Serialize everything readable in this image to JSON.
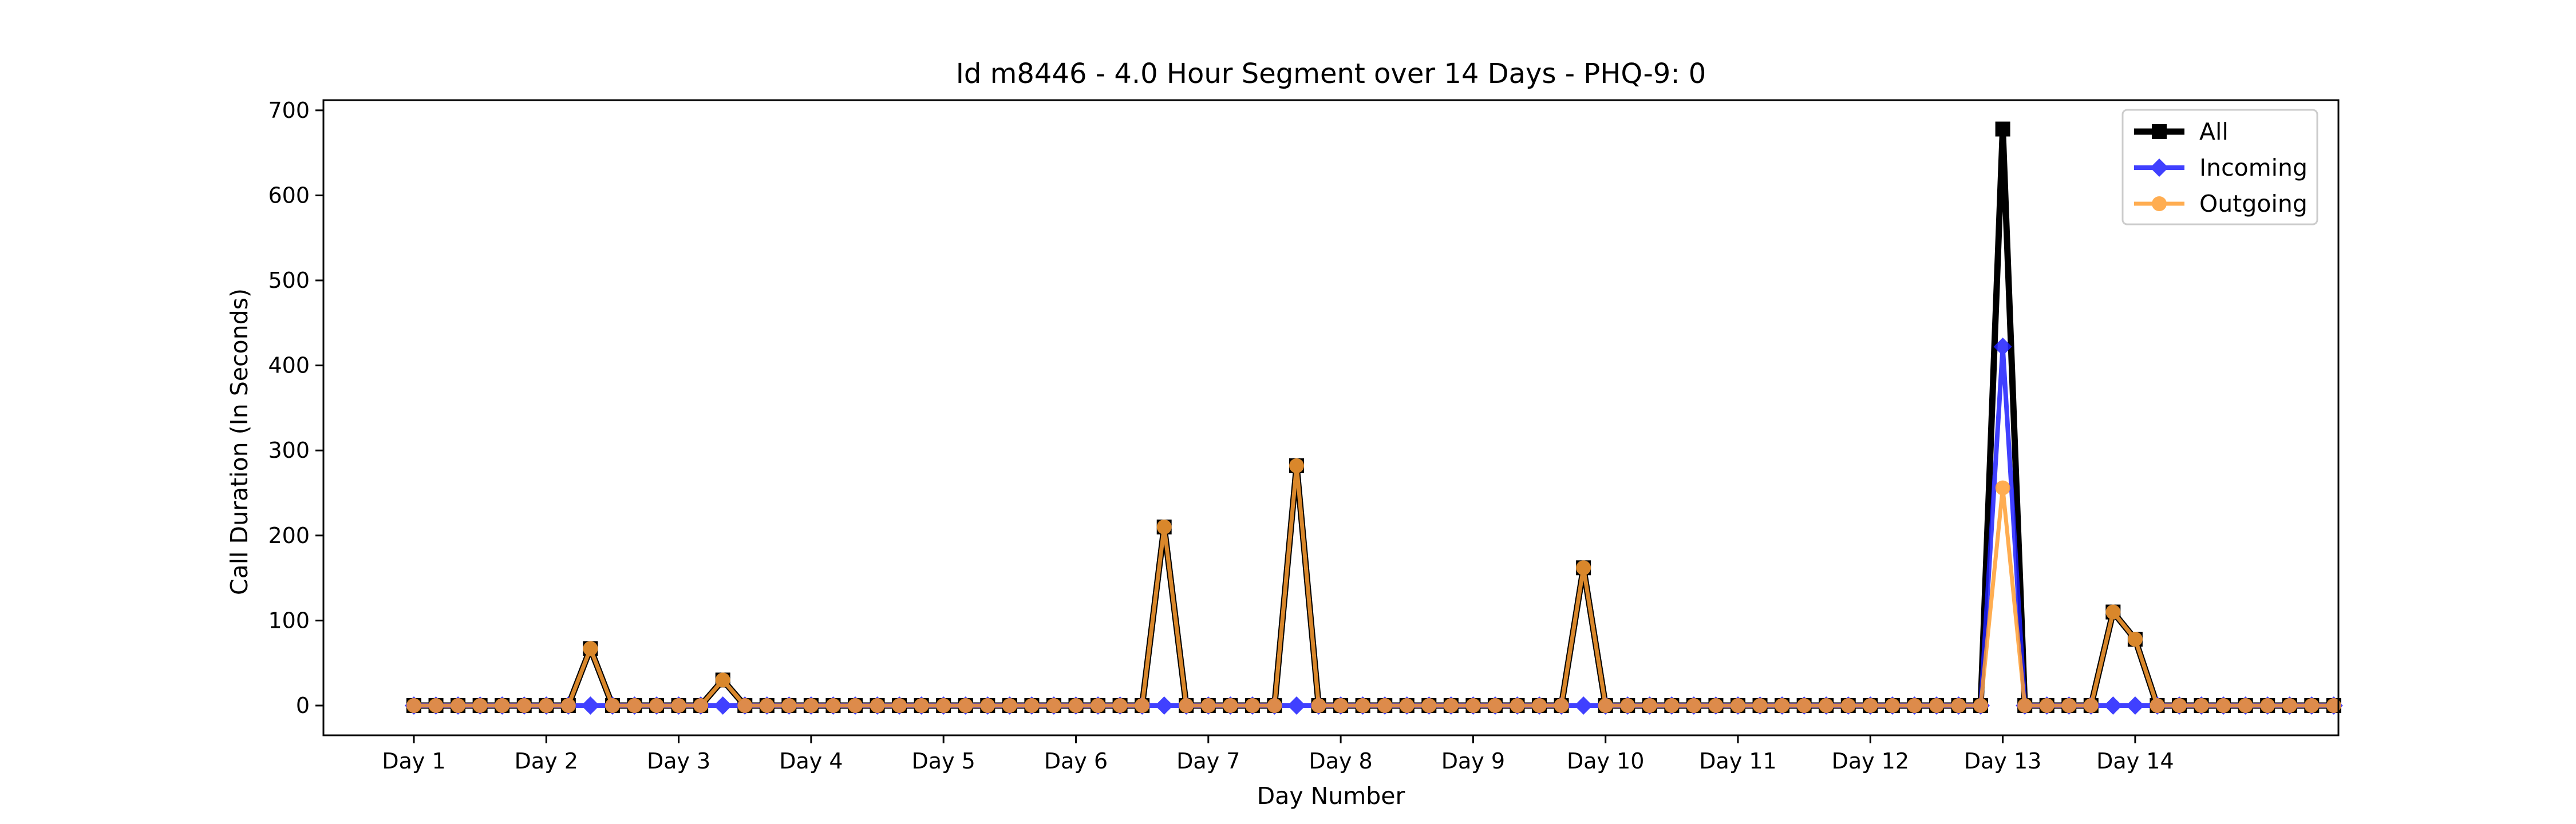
{
  "chart_data": {
    "type": "line",
    "title": "Id m8446 - 4.0 Hour Segment over 14 Days - PHQ-9: 0",
    "xlabel": "Day Number",
    "ylabel": "Call Duration (In Seconds)",
    "ylim": [
      -35,
      712
    ],
    "yticks": [
      0,
      100,
      200,
      300,
      400,
      500,
      600,
      700
    ],
    "xtick_labels": [
      "Day 1",
      "Day 2",
      "Day 3",
      "Day 4",
      "Day 5",
      "Day 6",
      "Day 7",
      "Day 8",
      "Day 9",
      "Day 10",
      "Day 11",
      "Day 12",
      "Day 13",
      "Day 14"
    ],
    "points_per_day": 6,
    "grid": false,
    "legend_position": "top-right",
    "series": [
      {
        "name": "All",
        "color": "#000000",
        "marker": "square",
        "values": [
          0,
          0,
          0,
          0,
          0,
          0,
          0,
          0,
          67,
          0,
          0,
          0,
          0,
          0,
          30,
          0,
          0,
          0,
          0,
          0,
          0,
          0,
          0,
          0,
          0,
          0,
          0,
          0,
          0,
          0,
          0,
          0,
          0,
          0,
          210,
          0,
          0,
          0,
          0,
          0,
          282,
          0,
          0,
          0,
          0,
          0,
          0,
          0,
          0,
          0,
          0,
          0,
          0,
          162,
          0,
          0,
          0,
          0,
          0,
          0,
          0,
          0,
          0,
          0,
          0,
          0,
          0,
          0,
          0,
          0,
          0,
          0,
          678,
          0,
          0,
          0,
          0,
          110,
          78,
          0,
          0,
          0,
          0,
          0,
          0,
          0,
          0,
          0
        ]
      },
      {
        "name": "Incoming",
        "color": "#1f1fff",
        "marker": "diamond",
        "values": [
          0,
          0,
          0,
          0,
          0,
          0,
          0,
          0,
          0,
          0,
          0,
          0,
          0,
          0,
          0,
          0,
          0,
          0,
          0,
          0,
          0,
          0,
          0,
          0,
          0,
          0,
          0,
          0,
          0,
          0,
          0,
          0,
          0,
          0,
          0,
          0,
          0,
          0,
          0,
          0,
          0,
          0,
          0,
          0,
          0,
          0,
          0,
          0,
          0,
          0,
          0,
          0,
          0,
          0,
          0,
          0,
          0,
          0,
          0,
          0,
          0,
          0,
          0,
          0,
          0,
          0,
          0,
          0,
          0,
          0,
          0,
          0,
          422,
          0,
          0,
          0,
          0,
          0,
          0,
          0,
          0,
          0,
          0,
          0,
          0,
          0,
          0,
          0
        ]
      },
      {
        "name": "Outgoing",
        "color": "#ff9f33",
        "marker": "circle",
        "values": [
          0,
          0,
          0,
          0,
          0,
          0,
          0,
          0,
          67,
          0,
          0,
          0,
          0,
          0,
          30,
          0,
          0,
          0,
          0,
          0,
          0,
          0,
          0,
          0,
          0,
          0,
          0,
          0,
          0,
          0,
          0,
          0,
          0,
          0,
          210,
          0,
          0,
          0,
          0,
          0,
          282,
          0,
          0,
          0,
          0,
          0,
          0,
          0,
          0,
          0,
          0,
          0,
          0,
          162,
          0,
          0,
          0,
          0,
          0,
          0,
          0,
          0,
          0,
          0,
          0,
          0,
          0,
          0,
          0,
          0,
          0,
          0,
          256,
          0,
          0,
          0,
          0,
          110,
          78,
          0,
          0,
          0,
          0,
          0,
          0,
          0,
          0,
          0
        ]
      }
    ]
  }
}
